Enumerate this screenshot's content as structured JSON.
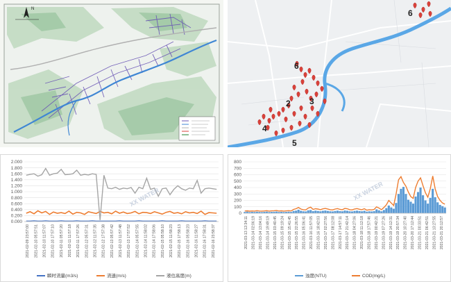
{
  "map_left": {
    "compass_label": "N",
    "legend_items": [
      "",
      "",
      "",
      "",
      "",
      "",
      ""
    ]
  },
  "map_right": {
    "zone_labels": [
      "6",
      "6",
      "2",
      "3",
      "4",
      "5"
    ],
    "colors": {
      "water": "#5aa7e6",
      "marker": "#d9423a",
      "land": "#eef0f2",
      "road": "#ffffff"
    }
  },
  "watermark": "XX WATER",
  "charts": [
    {
      "type": "line",
      "y_ticks": [
        "2.000",
        "1.800",
        "1.600",
        "1.400",
        "1.200",
        "1.000",
        "0.800",
        "0.600",
        "0.400",
        "0.200",
        "0.000"
      ],
      "ylim": [
        0,
        2.0
      ],
      "x_ticks": [
        "2021-02-09 23:57:00",
        "2021-02-10 05:57:51",
        "2021-02-10 11:57:07",
        "2021-02-10 17:57:10",
        "2021-02-11 05:57:20",
        "2021-02-11 11:57:18",
        "2021-02-11 17:57:26",
        "2021-02-12 05:57:31",
        "2021-02-12 11:57:35",
        "2021-02-12 17:57:38",
        "2021-02-13 05:57:42",
        "2021-02-13 11:57:48",
        "2021-02-13 17:57:52",
        "2021-02-14 05:57:55",
        "2021-02-14 11:58:02",
        "2021-02-14 17:58:06",
        "2021-02-15 05:58:10",
        "2021-02-15 11:58:23",
        "2021-02-15 17:58:13",
        "2021-02-16 05:58:23",
        "2021-02-16 11:58:27",
        "2021-02-16 17:58:31",
        "2021-02-16 23:58:37"
      ],
      "legend": [
        "瞬时流量(m3/s)",
        "流速(m/s)",
        "液位高度(m)"
      ],
      "colors": [
        "#4472c4",
        "#ed7d31",
        "#a5a5a5"
      ],
      "series": [
        {
          "name": "瞬时流量(m3/s)",
          "values": [
            0.02,
            0.02,
            0.03,
            0.02,
            0.02,
            0.03,
            0.02,
            0.02,
            0.02,
            0.03,
            0.02,
            0.02,
            0.02,
            0.03,
            0.02,
            0.02,
            0.02,
            0.03,
            0.02,
            0.02,
            0.02,
            0.02,
            0.02,
            0.02,
            0.03,
            0.02,
            0.02,
            0.02,
            0.02,
            0.03,
            0.02,
            0.02,
            0.02,
            0.02,
            0.02,
            0.03,
            0.02,
            0.02,
            0.02,
            0.02,
            0.03,
            0.02,
            0.02,
            0.02,
            0.02,
            0.02,
            0.03,
            0.02,
            0.02,
            0.02
          ]
        },
        {
          "name": "流速(m/s)",
          "values": [
            0.28,
            0.33,
            0.26,
            0.36,
            0.29,
            0.34,
            0.24,
            0.32,
            0.28,
            0.3,
            0.27,
            0.35,
            0.25,
            0.31,
            0.29,
            0.24,
            0.33,
            0.3,
            0.27,
            0.34,
            0.29,
            0.31,
            0.26,
            0.35,
            0.28,
            0.32,
            0.27,
            0.29,
            0.34,
            0.26,
            0.31,
            0.3,
            0.27,
            0.33,
            0.29,
            0.25,
            0.31,
            0.34,
            0.28,
            0.3,
            0.26,
            0.33,
            0.29,
            0.31,
            0.27,
            0.35,
            0.24,
            0.3,
            0.29,
            0.28
          ]
        },
        {
          "name": "液位高度(m)",
          "values": [
            1.55,
            1.58,
            1.6,
            1.52,
            1.57,
            1.78,
            1.55,
            1.6,
            1.62,
            1.75,
            1.57,
            1.58,
            1.6,
            1.72,
            1.55,
            1.58,
            1.56,
            1.6,
            1.58,
            0.05,
            1.55,
            1.12,
            1.1,
            1.15,
            1.08,
            1.12,
            1.1,
            1.14,
            0.95,
            1.15,
            1.1,
            1.45,
            1.08,
            1.12,
            0.85,
            1.1,
            1.12,
            0.9,
            1.08,
            1.2,
            1.1,
            1.05,
            1.12,
            1.1,
            1.38,
            0.95,
            1.1,
            1.12,
            1.1,
            1.08
          ]
        }
      ]
    },
    {
      "type": "bar+line",
      "y_ticks": [
        "800",
        "700",
        "600",
        "500",
        "400",
        "300",
        "200",
        "100",
        "0"
      ],
      "ylim": [
        0,
        800
      ],
      "x_ticks": [
        "2021-03-13 12:34:11",
        "2021-03-14 02:06:19",
        "2021-03-14 13:04:16",
        "2021-03-14 19:49:19",
        "2021-03-15 03:40:45",
        "2021-03-15 09:19:24",
        "2021-03-15 15:41:45",
        "2021-03-15 22:26:55",
        "2021-03-16 05:06:41",
        "2021-03-16 11:57:05",
        "2021-03-16 18:42:03",
        "2021-03-17 02:27:56",
        "2021-03-17 08:12:08",
        "2021-03-17 14:57:11",
        "2021-03-17 21:42:14",
        "2021-03-18 04:27:06",
        "2021-03-18 11:12:18",
        "2021-03-18 17:57:46",
        "2021-03-19 00:42:21",
        "2021-03-19 07:27:26",
        "2021-03-19 14:12:31",
        "2021-03-19 20:57:34",
        "2021-03-20 10:27:40",
        "2021-03-20 17:12:44",
        "2021-03-21 00:33:51",
        "2021-03-21 06:42:51",
        "2021-03-21 13:27:55",
        "2021-03-21 20:12:57"
      ],
      "legend": [
        "浊度(NTU)",
        "COD(mg/L)"
      ],
      "colors": [
        "#5b9bd5",
        "#ed7d31"
      ],
      "series": [
        {
          "name": "浊度(NTU)",
          "values": [
            20,
            25,
            18,
            22,
            19,
            24,
            20,
            18,
            22,
            25,
            19,
            21,
            23,
            26,
            20,
            22,
            19,
            21,
            24,
            20,
            35,
            40,
            55,
            38,
            30,
            28,
            45,
            50,
            32,
            40,
            35,
            30,
            38,
            42,
            36,
            30,
            28,
            35,
            40,
            33,
            30,
            42,
            38,
            30,
            28,
            36,
            40,
            34,
            30,
            38,
            25,
            30,
            28,
            32,
            60,
            45,
            30,
            50,
            80,
            120,
            90,
            70,
            160,
            300,
            380,
            410,
            300,
            210,
            180,
            150,
            260,
            330,
            400,
            280,
            200,
            150,
            240,
            380,
            250,
            170,
            130,
            110,
            90
          ]
        },
        {
          "name": "COD(mg/L)",
          "values": [
            35,
            38,
            32,
            36,
            34,
            40,
            35,
            33,
            36,
            40,
            34,
            37,
            39,
            42,
            35,
            38,
            34,
            37,
            40,
            36,
            60,
            70,
            90,
            65,
            55,
            52,
            80,
            95,
            60,
            70,
            65,
            55,
            68,
            75,
            66,
            55,
            52,
            65,
            72,
            60,
            55,
            75,
            70,
            55,
            52,
            66,
            72,
            62,
            55,
            70,
            48,
            55,
            52,
            60,
            100,
            80,
            55,
            90,
            130,
            200,
            160,
            120,
            300,
            520,
            570,
            480,
            420,
            330,
            260,
            230,
            400,
            500,
            550,
            430,
            320,
            250,
            380,
            580,
            380,
            260,
            200,
            160,
            140
          ]
        }
      ]
    }
  ]
}
